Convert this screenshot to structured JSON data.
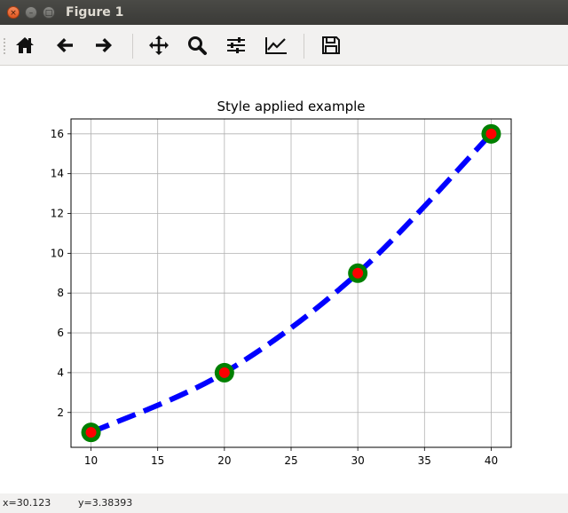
{
  "window": {
    "title": "Figure 1",
    "close_glyph": "×",
    "minimize_glyph": "–",
    "maximize_glyph": "□"
  },
  "toolbar": {
    "buttons": [
      {
        "name": "home",
        "icon": "home-icon"
      },
      {
        "name": "back",
        "icon": "arrow-left-icon"
      },
      {
        "name": "forward",
        "icon": "arrow-right-icon"
      },
      {
        "name": "pan",
        "icon": "move-icon"
      },
      {
        "name": "zoom",
        "icon": "magnifier-icon"
      },
      {
        "name": "configure-subplots",
        "icon": "sliders-icon"
      },
      {
        "name": "edit-axis",
        "icon": "line-chart-icon"
      },
      {
        "name": "save",
        "icon": "floppy-disk-icon"
      }
    ]
  },
  "status": {
    "x_readout": "x=30.123",
    "y_readout": "y=3.38393"
  },
  "chart_data": {
    "type": "line",
    "title": "Style applied example",
    "xlabel": "",
    "ylabel": "",
    "x": [
      10,
      20,
      30,
      40
    ],
    "y": [
      1,
      4,
      9,
      16
    ],
    "xlim": [
      8.5,
      41.5
    ],
    "ylim": [
      0.25,
      16.75
    ],
    "xticks": [
      10,
      15,
      20,
      25,
      30,
      35,
      40
    ],
    "yticks": [
      2,
      4,
      6,
      8,
      10,
      12,
      14,
      16
    ],
    "grid": true,
    "line_color": "#0000ff",
    "line_style": "dashed",
    "marker_face_color": "#ff0000",
    "marker_edge_color": "#008000"
  }
}
